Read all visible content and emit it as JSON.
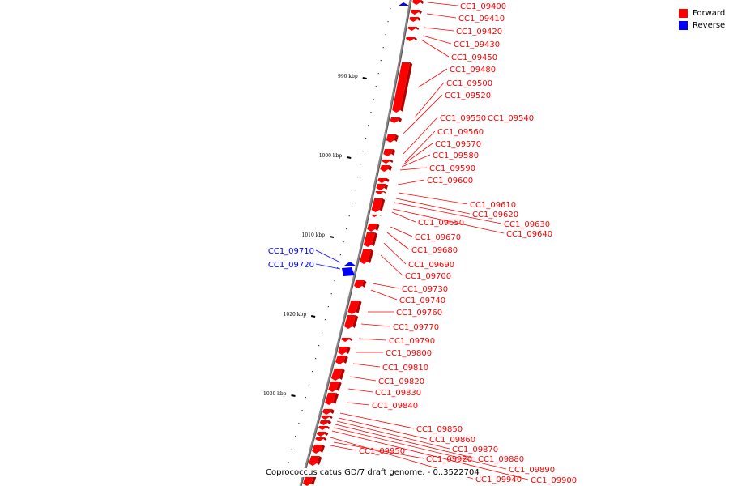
{
  "caption": "Coprococcus catus GD/7 draft genome. - 0..3522704",
  "legend": [
    {
      "label": "Forward",
      "color": "#ff0000"
    },
    {
      "label": "Reverse",
      "color": "#0000ff"
    }
  ],
  "colors": {
    "forward": "#ff0000",
    "reverse": "#0000ff",
    "backbone": "#888888"
  },
  "ticks": [
    {
      "label": "990 kbp"
    },
    {
      "label": "1000 kbp"
    },
    {
      "label": "1010 kbp"
    },
    {
      "label": "1020 kbp"
    },
    {
      "label": "1030 kbp"
    }
  ],
  "genes_forward": [
    "CC1_09400",
    "CC1_09410",
    "CC1_09420",
    "CC1_09430",
    "CC1_09450",
    "CC1_09480",
    "CC1_09500",
    "CC1_09520",
    "CC1_09550",
    "CC1_09540",
    "CC1_09560",
    "CC1_09570",
    "CC1_09580",
    "CC1_09590",
    "CC1_09600",
    "CC1_09610",
    "CC1_09620",
    "CC1_09630",
    "CC1_09640",
    "CC1_09650",
    "CC1_09670",
    "CC1_09680",
    "CC1_09690",
    "CC1_09700",
    "CC1_09730",
    "CC1_09740",
    "CC1_09760",
    "CC1_09770",
    "CC1_09790",
    "CC1_09800",
    "CC1_09810",
    "CC1_09820",
    "CC1_09830",
    "CC1_09840",
    "CC1_09850",
    "CC1_09860",
    "CC1_09870",
    "CC1_09880",
    "CC1_09890",
    "CC1_09900",
    "CC1_09920",
    "CC1_09940",
    "CC1_09950"
  ],
  "genes_reverse": [
    "CC1_09710",
    "CC1_09720"
  ]
}
